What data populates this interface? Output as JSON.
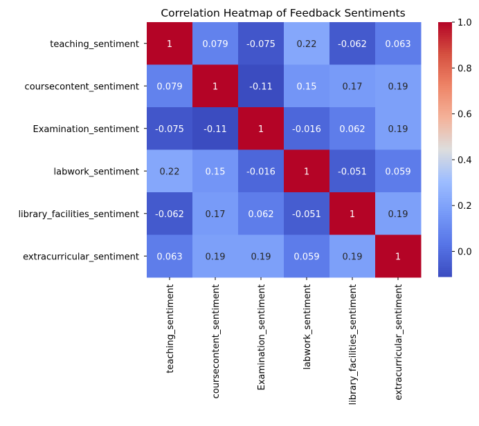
{
  "chart_data": {
    "type": "heatmap",
    "title": "Correlation Heatmap of Feedback Sentiments",
    "xlabel": "",
    "ylabel": "",
    "row_labels": [
      "teaching_sentiment",
      "coursecontent_sentiment",
      "Examination_sentiment",
      "labwork_sentiment",
      "library_facilities_sentiment",
      "extracurricular_sentiment"
    ],
    "col_labels": [
      "teaching_sentiment",
      "coursecontent_sentiment",
      "Examination_sentiment",
      "labwork_sentiment",
      "library_facilities_sentiment",
      "extracurricular_sentiment"
    ],
    "values": [
      [
        1,
        0.079,
        -0.075,
        0.22,
        -0.062,
        0.063
      ],
      [
        0.079,
        1,
        -0.11,
        0.15,
        0.17,
        0.19
      ],
      [
        -0.075,
        -0.11,
        1,
        -0.016,
        0.062,
        0.19
      ],
      [
        0.22,
        0.15,
        -0.016,
        1,
        -0.051,
        0.059
      ],
      [
        -0.062,
        0.17,
        0.062,
        -0.051,
        1,
        0.19
      ],
      [
        0.063,
        0.19,
        0.19,
        0.059,
        0.19,
        1
      ]
    ],
    "annotations": [
      [
        "1",
        "0.079",
        "-0.075",
        "0.22",
        "-0.062",
        "0.063"
      ],
      [
        "0.079",
        "1",
        "-0.11",
        "0.15",
        "0.17",
        "0.19"
      ],
      [
        "-0.075",
        "-0.11",
        "1",
        "-0.016",
        "0.062",
        "0.19"
      ],
      [
        "0.22",
        "0.15",
        "-0.016",
        "1",
        "-0.051",
        "0.059"
      ],
      [
        "-0.062",
        "0.17",
        "0.062",
        "-0.051",
        "1",
        "0.19"
      ],
      [
        "0.063",
        "0.19",
        "0.19",
        "0.059",
        "0.19",
        "1"
      ]
    ],
    "colormap": "coolwarm",
    "colorbar": {
      "range": [
        -0.11,
        1
      ],
      "ticks": [
        0.0,
        0.2,
        0.4,
        0.6,
        0.8,
        1.0
      ],
      "tick_labels": [
        "0.0",
        "0.2",
        "0.4",
        "0.6",
        "0.8",
        "1.0"
      ]
    },
    "grid": false,
    "legend": "colorbar-right"
  }
}
